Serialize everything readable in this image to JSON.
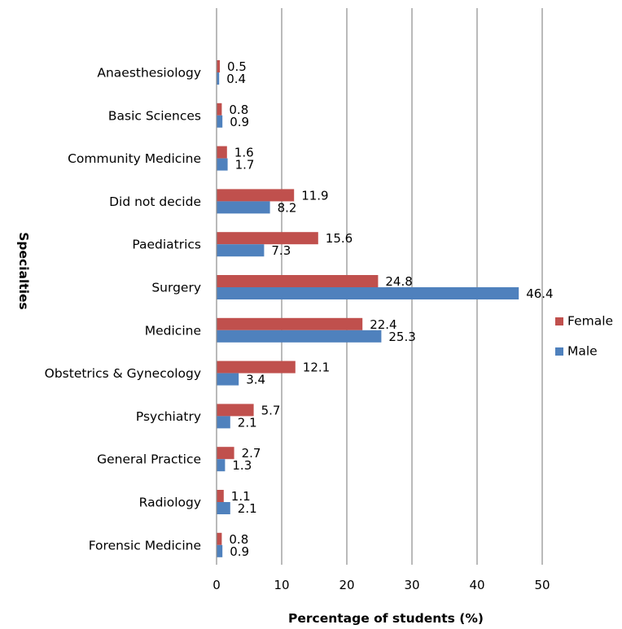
{
  "chart_data": {
    "type": "bar",
    "orientation": "horizontal",
    "xlabel": "Percentage of students (%)",
    "ylabel": "Specialties",
    "xlim": [
      0,
      50
    ],
    "xticks": [
      0,
      10,
      20,
      30,
      40,
      50
    ],
    "grid": true,
    "legend_position": "right",
    "categories": [
      "Anaesthesiology",
      "Basic Sciences",
      "Community Medicine",
      "Did not decide",
      "Paediatrics",
      "Surgery",
      "Medicine",
      "Obstetrics & Gynecology",
      "Psychiatry",
      "General Practice",
      "Radiology",
      "Forensic Medicine"
    ],
    "series": [
      {
        "name": "Female",
        "color": "#C0504D",
        "values": [
          0.5,
          0.8,
          1.6,
          11.9,
          15.6,
          24.8,
          22.4,
          12.1,
          5.7,
          2.7,
          1.1,
          0.8
        ]
      },
      {
        "name": "Male",
        "color": "#4F81BD",
        "values": [
          0.4,
          0.9,
          1.7,
          8.2,
          7.3,
          46.4,
          25.3,
          3.4,
          2.1,
          1.3,
          2.1,
          0.9
        ]
      }
    ]
  }
}
